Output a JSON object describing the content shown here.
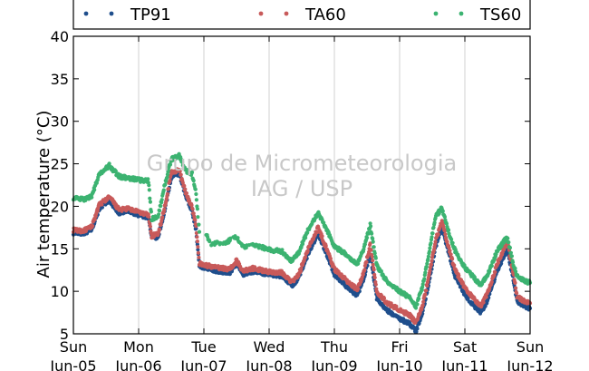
{
  "chart_data": {
    "type": "scatter",
    "ylabel": "Air temperature (°C)",
    "xlabel": "",
    "ylim": [
      5,
      40
    ],
    "xlim": [
      0,
      7
    ],
    "y_ticks": [
      5,
      10,
      15,
      20,
      25,
      30,
      35,
      40
    ],
    "x_ticks": [
      {
        "day": 0,
        "weekday": "Sun",
        "date": "Jun-05"
      },
      {
        "day": 1,
        "weekday": "Mon",
        "date": "Jun-06"
      },
      {
        "day": 2,
        "weekday": "Tue",
        "date": "Jun-07"
      },
      {
        "day": 3,
        "weekday": "Wed",
        "date": "Jun-08"
      },
      {
        "day": 4,
        "weekday": "Thu",
        "date": "Jun-09"
      },
      {
        "day": 5,
        "weekday": "Fri",
        "date": "Jun-10"
      },
      {
        "day": 6,
        "weekday": "Sat",
        "date": "Jun-11"
      },
      {
        "day": 7,
        "weekday": "Sun",
        "date": "Jun-12"
      }
    ],
    "grid": "vertical",
    "legend_position": "top",
    "watermark": [
      "Grupo de Micrometeorologia",
      "IAG / USP"
    ],
    "series": [
      {
        "name": "TP91",
        "color": "#1f4e8c",
        "points": [
          [
            0.0,
            16.9
          ],
          [
            0.15,
            16.8
          ],
          [
            0.28,
            17.3
          ],
          [
            0.4,
            19.8
          ],
          [
            0.55,
            20.7
          ],
          [
            0.7,
            19.2
          ],
          [
            0.85,
            19.4
          ],
          [
            1.0,
            19.0
          ],
          [
            1.15,
            18.7
          ],
          [
            1.2,
            16.2
          ],
          [
            1.3,
            16.4
          ],
          [
            1.4,
            19.5
          ],
          [
            1.5,
            23.5
          ],
          [
            1.62,
            23.8
          ],
          [
            1.72,
            21.2
          ],
          [
            1.82,
            19.5
          ],
          [
            1.88,
            17.2
          ],
          [
            1.93,
            13.0
          ],
          [
            2.0,
            12.8
          ],
          [
            2.2,
            12.4
          ],
          [
            2.4,
            12.2
          ],
          [
            2.5,
            13.2
          ],
          [
            2.6,
            12.0
          ],
          [
            2.75,
            12.3
          ],
          [
            3.0,
            12.0
          ],
          [
            3.2,
            11.8
          ],
          [
            3.35,
            10.7
          ],
          [
            3.45,
            11.5
          ],
          [
            3.6,
            14.5
          ],
          [
            3.75,
            16.8
          ],
          [
            3.85,
            15.0
          ],
          [
            4.0,
            12.0
          ],
          [
            4.2,
            10.5
          ],
          [
            4.35,
            9.5
          ],
          [
            4.45,
            11.5
          ],
          [
            4.55,
            14.5
          ],
          [
            4.65,
            9.2
          ],
          [
            4.8,
            7.8
          ],
          [
            5.0,
            6.8
          ],
          [
            5.15,
            6.2
          ],
          [
            5.25,
            5.3
          ],
          [
            5.35,
            7.5
          ],
          [
            5.45,
            11.0
          ],
          [
            5.55,
            15.2
          ],
          [
            5.65,
            17.6
          ],
          [
            5.75,
            14.5
          ],
          [
            5.85,
            11.8
          ],
          [
            6.0,
            9.6
          ],
          [
            6.15,
            8.2
          ],
          [
            6.25,
            7.5
          ],
          [
            6.35,
            9.0
          ],
          [
            6.5,
            12.5
          ],
          [
            6.65,
            15.0
          ],
          [
            6.75,
            11.0
          ],
          [
            6.8,
            8.8
          ],
          [
            6.9,
            8.3
          ],
          [
            7.0,
            8.0
          ]
        ]
      },
      {
        "name": "TA60",
        "color": "#c85a5a",
        "points": [
          [
            0.0,
            17.2
          ],
          [
            0.15,
            17.1
          ],
          [
            0.28,
            17.6
          ],
          [
            0.4,
            20.2
          ],
          [
            0.55,
            21.1
          ],
          [
            0.7,
            19.6
          ],
          [
            0.85,
            19.7
          ],
          [
            1.0,
            19.3
          ],
          [
            1.15,
            19.0
          ],
          [
            1.2,
            16.5
          ],
          [
            1.3,
            16.8
          ],
          [
            1.4,
            19.9
          ],
          [
            1.5,
            24.0
          ],
          [
            1.62,
            24.3
          ],
          [
            1.72,
            21.6
          ],
          [
            1.82,
            19.9
          ],
          [
            1.88,
            17.6
          ],
          [
            1.93,
            13.3
          ],
          [
            2.0,
            13.1
          ],
          [
            2.2,
            12.8
          ],
          [
            2.4,
            12.6
          ],
          [
            2.5,
            13.6
          ],
          [
            2.6,
            12.4
          ],
          [
            2.75,
            12.7
          ],
          [
            3.0,
            12.3
          ],
          [
            3.2,
            12.2
          ],
          [
            3.35,
            11.1
          ],
          [
            3.45,
            11.9
          ],
          [
            3.6,
            15.0
          ],
          [
            3.75,
            17.5
          ],
          [
            3.85,
            15.6
          ],
          [
            4.0,
            12.6
          ],
          [
            4.2,
            11.2
          ],
          [
            4.35,
            10.2
          ],
          [
            4.45,
            12.2
          ],
          [
            4.55,
            15.5
          ],
          [
            4.65,
            10.0
          ],
          [
            4.8,
            8.7
          ],
          [
            5.0,
            7.8
          ],
          [
            5.15,
            7.2
          ],
          [
            5.25,
            6.3
          ],
          [
            5.35,
            8.3
          ],
          [
            5.45,
            11.8
          ],
          [
            5.55,
            16.0
          ],
          [
            5.65,
            18.2
          ],
          [
            5.75,
            15.2
          ],
          [
            5.85,
            12.5
          ],
          [
            6.0,
            10.4
          ],
          [
            6.15,
            9.0
          ],
          [
            6.25,
            8.3
          ],
          [
            6.35,
            9.8
          ],
          [
            6.5,
            13.3
          ],
          [
            6.65,
            15.8
          ],
          [
            6.75,
            11.8
          ],
          [
            6.8,
            9.4
          ],
          [
            6.9,
            8.9
          ],
          [
            7.0,
            8.6
          ]
        ]
      },
      {
        "name": "TS60",
        "color": "#3cb371",
        "points": [
          [
            0.0,
            21.0
          ],
          [
            0.15,
            20.8
          ],
          [
            0.28,
            21.2
          ],
          [
            0.4,
            23.8
          ],
          [
            0.55,
            24.8
          ],
          [
            0.7,
            23.5
          ],
          [
            0.85,
            23.3
          ],
          [
            1.0,
            23.1
          ],
          [
            1.15,
            23.0
          ],
          [
            1.2,
            18.5
          ],
          [
            1.3,
            18.8
          ],
          [
            1.4,
            22.5
          ],
          [
            1.5,
            25.5
          ],
          [
            1.62,
            26.0
          ],
          [
            1.72,
            24.2
          ],
          [
            1.82,
            23.8
          ],
          [
            1.88,
            21.5
          ],
          [
            1.93,
            17.0
          ],
          [
            2.05,
            16.4
          ],
          [
            2.1,
            15.5
          ],
          [
            2.35,
            15.8
          ],
          [
            2.5,
            16.4
          ],
          [
            2.6,
            15.2
          ],
          [
            2.75,
            15.5
          ],
          [
            3.0,
            14.9
          ],
          [
            3.2,
            14.7
          ],
          [
            3.35,
            13.5
          ],
          [
            3.45,
            14.5
          ],
          [
            3.6,
            17.3
          ],
          [
            3.75,
            19.2
          ],
          [
            3.85,
            17.8
          ],
          [
            4.0,
            15.3
          ],
          [
            4.2,
            14.2
          ],
          [
            4.35,
            13.2
          ],
          [
            4.45,
            15.0
          ],
          [
            4.55,
            17.8
          ],
          [
            4.65,
            13.0
          ],
          [
            4.8,
            11.2
          ],
          [
            5.0,
            10.0
          ],
          [
            5.15,
            9.3
          ],
          [
            5.25,
            8.2
          ],
          [
            5.35,
            10.5
          ],
          [
            5.45,
            14.5
          ],
          [
            5.55,
            18.8
          ],
          [
            5.65,
            19.8
          ],
          [
            5.75,
            17.0
          ],
          [
            5.85,
            14.8
          ],
          [
            6.0,
            12.8
          ],
          [
            6.15,
            11.5
          ],
          [
            6.25,
            10.7
          ],
          [
            6.35,
            12.0
          ],
          [
            6.5,
            14.8
          ],
          [
            6.65,
            16.4
          ],
          [
            6.75,
            13.0
          ],
          [
            6.8,
            11.8
          ],
          [
            6.9,
            11.3
          ],
          [
            7.0,
            11.0
          ]
        ]
      }
    ]
  }
}
